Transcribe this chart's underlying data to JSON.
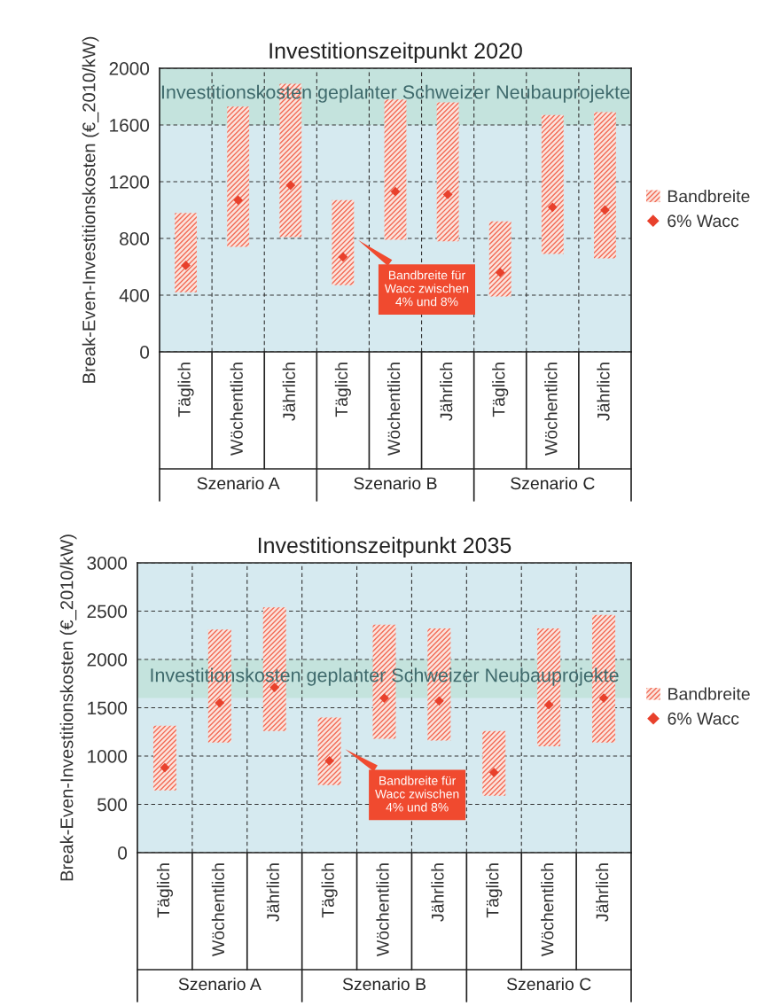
{
  "chart_data": [
    {
      "type": "bar",
      "title": "Investitionszeitpunkt 2020",
      "ylabel": "Break-Even-Investitionskosten (€_2010/kW)",
      "categories": [
        "Täglich",
        "Wöchentlich",
        "Jährlich",
        "Täglich",
        "Wöchentlich",
        "Jährlich",
        "Täglich",
        "Wöchentlich",
        "Jährlich"
      ],
      "series": [
        {
          "name": "Bandbreite",
          "color": "#f26a55",
          "base": [
            420,
            740,
            810,
            470,
            790,
            780,
            390,
            690,
            660
          ],
          "values": [
            560,
            990,
            1080,
            600,
            990,
            980,
            530,
            980,
            1030
          ]
        },
        {
          "type": "scatter",
          "name": "6% Wacc",
          "color": "#e8412c",
          "marker": "diamond",
          "values": [
            610,
            1070,
            1175,
            670,
            1130,
            1110,
            560,
            1020,
            1000
          ]
        }
      ],
      "ylim": [
        0,
        2000
      ],
      "yticks": [
        0,
        400,
        800,
        1200,
        1600,
        2000
      ],
      "grid": true,
      "legend": "right",
      "bands": [
        {
          "axis": "y",
          "from": 1600,
          "to": 2000,
          "label": "Investitionskosten geplanter Schweizer Neubauprojekte",
          "color": "#c4e3dd"
        }
      ],
      "annotations": [
        "Bandbreite für\nWacc zwischen\n4% und 8%",
        "Szenario A",
        "Szenario B",
        "Szenario C"
      ]
    },
    {
      "type": "bar",
      "title": "Investitionszeitpunkt 2035",
      "ylabel": "Break-Even-Investitionskosten (€_2010/kW)",
      "categories": [
        "Täglich",
        "Wöchentlich",
        "Jährlich",
        "Täglich",
        "Wöchentlich",
        "Jährlich",
        "Täglich",
        "Wöchentlich",
        "Jährlich"
      ],
      "series": [
        {
          "name": "Bandbreite",
          "color": "#f26a55",
          "base": [
            645,
            1140,
            1260,
            700,
            1180,
            1160,
            590,
            1100,
            1140
          ],
          "values": [
            670,
            1170,
            1280,
            700,
            1180,
            1160,
            670,
            1220,
            1320
          ]
        },
        {
          "type": "scatter",
          "name": "6% Wacc",
          "color": "#e8412c",
          "marker": "diamond",
          "values": [
            880,
            1550,
            1710,
            950,
            1600,
            1570,
            830,
            1530,
            1600
          ]
        }
      ],
      "ylim": [
        0,
        3000
      ],
      "yticks": [
        0,
        500,
        1000,
        1500,
        2000,
        2500,
        3000
      ],
      "grid": true,
      "legend": "right",
      "bands": [
        {
          "axis": "y",
          "from": 1600,
          "to": 2000,
          "label": "Investitionskosten geplanter Schweizer Neubauprojekte",
          "color": "#c4e3dd"
        }
      ],
      "annotations": [
        "Bandbreite für\nWacc zwischen\n4% und 8%",
        "Szenario A",
        "Szenario B",
        "Szenario C"
      ]
    }
  ]
}
